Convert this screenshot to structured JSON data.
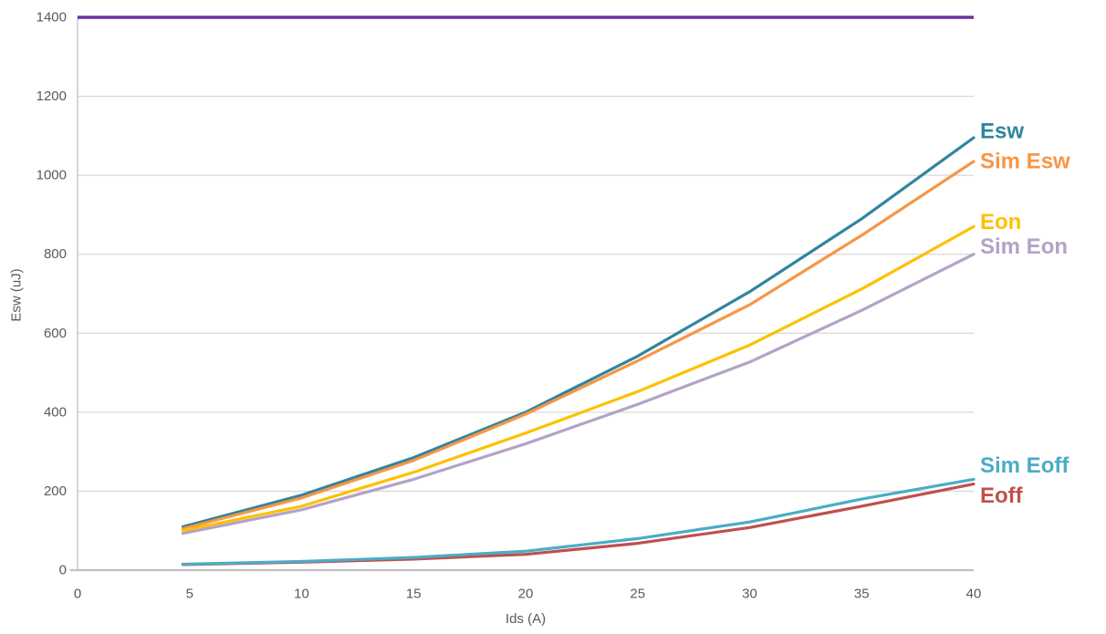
{
  "chart_data": {
    "type": "line",
    "xlabel": "Ids (A)",
    "ylabel": "Esw (uJ)",
    "xlim": [
      0,
      40
    ],
    "ylim": [
      0,
      1400
    ],
    "x_ticks": [
      0,
      5,
      10,
      15,
      20,
      25,
      30,
      35,
      40
    ],
    "y_ticks": [
      0,
      200,
      400,
      600,
      800,
      1000,
      1200,
      1400
    ],
    "grid": "horizontal",
    "legend_position": "series-end-labels-right",
    "x": [
      4.7,
      10,
      15,
      20,
      25,
      30,
      35,
      40
    ],
    "series": [
      {
        "name": "Esw",
        "color": "#31859C",
        "values": [
          110,
          190,
          285,
          400,
          542,
          705,
          890,
          1095
        ]
      },
      {
        "name": "Sim Esw",
        "color": "#F79646",
        "values": [
          105,
          183,
          278,
          395,
          530,
          672,
          848,
          1035
        ]
      },
      {
        "name": "Eon",
        "color": "#FFC000",
        "values": [
          100,
          162,
          248,
          347,
          452,
          570,
          712,
          870
        ]
      },
      {
        "name": "Sim Eon",
        "color": "#B3A2C7",
        "values": [
          93,
          153,
          230,
          320,
          420,
          527,
          658,
          800
        ]
      },
      {
        "name": "Eoff",
        "color": "#C0504D",
        "values": [
          14,
          20,
          28,
          40,
          68,
          108,
          162,
          218
        ]
      },
      {
        "name": "Sim Eoff",
        "color": "#4BACC6",
        "values": [
          15,
          22,
          32,
          48,
          80,
          122,
          180,
          230
        ]
      }
    ],
    "hline": {
      "value": 1400,
      "color": "#7030A0"
    }
  },
  "colors": {
    "grid": "#D9D9D9",
    "axis": "#BFBFBF",
    "tick_text": "#595959",
    "background": "#FFFFFF"
  }
}
